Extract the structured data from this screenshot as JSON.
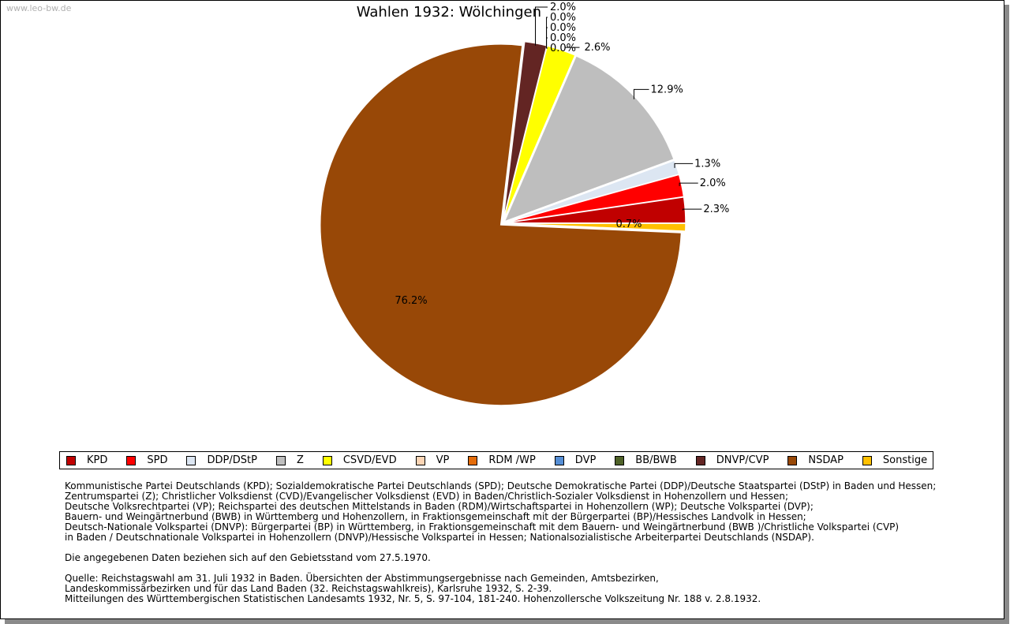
{
  "watermark": "www.leo-bw.de",
  "chart_data": {
    "type": "pie",
    "title": "Wahlen 1932: Wölchingen",
    "categories": [
      "KPD",
      "SPD",
      "DDP/DStP",
      "Z",
      "CSVD/EVD",
      "VP",
      "RDM /WP",
      "DVP",
      "BB/BWB",
      "DNVP/CVP",
      "NSDAP",
      "Sonstige"
    ],
    "values": [
      2.3,
      2.0,
      1.3,
      12.9,
      2.6,
      0.0,
      0.0,
      0.0,
      0.0,
      2.0,
      76.2,
      0.7
    ],
    "labels": [
      "2.3%",
      "2.0%",
      "1.3%",
      "12.9%",
      "2.6%",
      "0.0%",
      "0.0%",
      "0.0%",
      "0.0%",
      "2.0%",
      "76.2%",
      "0.7%"
    ],
    "colors": [
      "#c00000",
      "#ff0000",
      "#dce6f2",
      "#bebebe",
      "#ffff00",
      "#fcd5b5",
      "#e46c0a",
      "#558ed5",
      "#4f6228",
      "#632523",
      "#984807",
      "#ffc000"
    ],
    "legend_position": "bottom"
  },
  "notes": {
    "parties": [
      "Kommunistische Partei Deutschlands (KPD); Sozialdemokratische Partei Deutschlands (SPD); Deutsche Demokratische Partei (DDP)/Deutsche Staatspartei (DStP) in Baden und Hessen;",
      "Zentrumspartei (Z); Christlicher Volksdienst (CVD)/Evangelischer Volksdienst (EVD) in Baden/Christlich-Sozialer Volksdienst in Hohenzollern und Hessen;",
      "Deutsche Volksrechtpartei (VP); Reichspartei des deutschen Mittelstands in Baden (RDM)/Wirtschaftspartei in Hohenzollern (WP); Deutsche Volkspartei (DVP);",
      "Bauern- und Weingärtnerbund (BWB) in Württemberg und Hohenzollern, in Fraktionsgemeinschaft mit der Bürgerpartei (BP)/Hessisches Landvolk in Hessen;",
      "Deutsch-Nationale Volkspartei (DNVP): Bürgerpartei (BP) in Württemberg, in Fraktionsgemeinschaft mit dem Bauern- und Weingärtnerbund (BWB )/Christliche Volkspartei (CVP)",
      "in Baden / Deutschnationale Volkspartei in Hohenzollern (DNVP)/Hessische Volkspartei in Hessen; Nationalsozialistische Arbeiterpartei Deutschlands (NSDAP)."
    ],
    "gebiet": "Die angegebenen Daten beziehen sich auf den Gebietsstand vom 27.5.1970.",
    "quelle": [
      "Quelle: Reichstagswahl am 31. Juli 1932 in Baden. Übersichten der Abstimmungsergebnisse nach Gemeinden, Amtsbezirken,",
      "Landeskommissärbezirken und für das Land Baden (32. Reichstagswahlkreis), Karlsruhe 1932, S. 2-39.",
      "Mitteilungen des Württembergischen Statistischen Landesamts 1932, Nr. 5, S. 97-104, 181-240. Hohenzollersche Volkszeitung Nr. 188 v. 2.8.1932."
    ]
  }
}
